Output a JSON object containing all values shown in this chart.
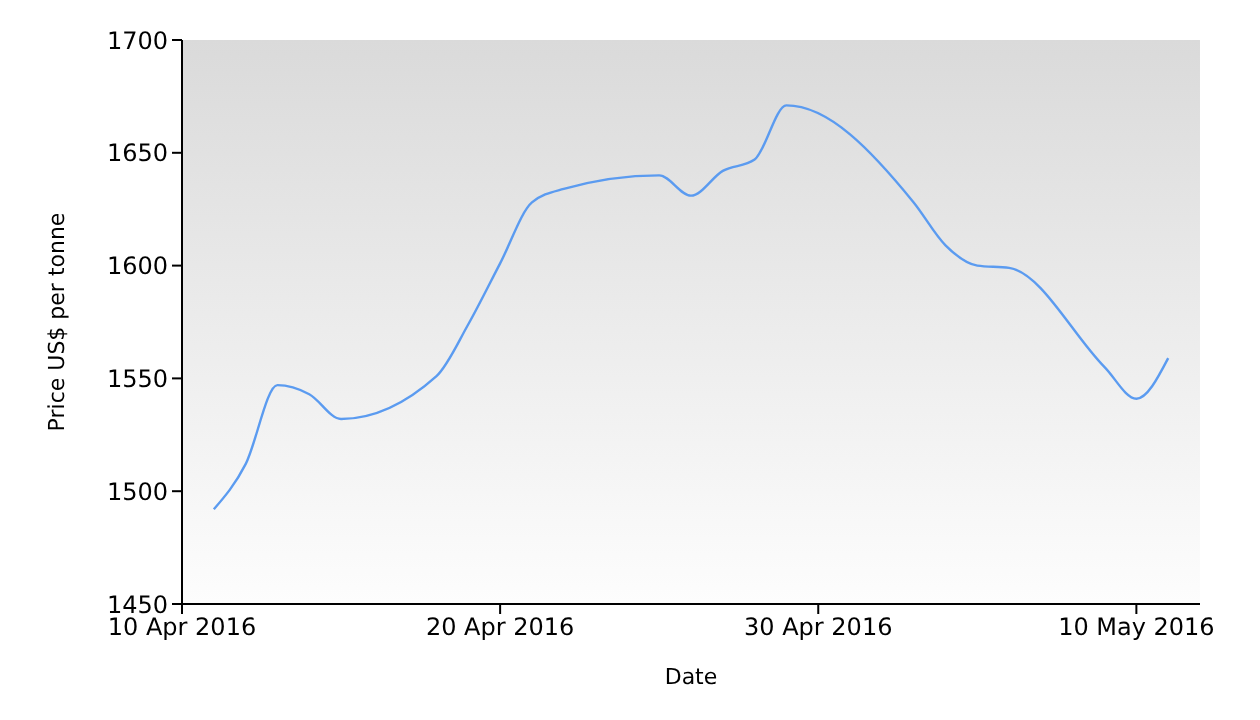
{
  "chart_data": {
    "type": "line",
    "xlabel": "Date",
    "ylabel": "Price US$ per tonne",
    "x": [
      "2016-04-11",
      "2016-04-12",
      "2016-04-13",
      "2016-04-14",
      "2016-04-15",
      "2016-04-18",
      "2016-04-19",
      "2016-04-20",
      "2016-04-21",
      "2016-04-22",
      "2016-04-25",
      "2016-04-26",
      "2016-04-27",
      "2016-04-28",
      "2016-04-29",
      "2016-05-03",
      "2016-05-04",
      "2016-05-05",
      "2016-05-06",
      "2016-05-09",
      "2016-05-10",
      "2016-05-11"
    ],
    "series": [
      {
        "color": "#5b9bf0",
        "values": [
          1492,
          1512,
          1547,
          1543,
          1532,
          1551,
          1574,
          1601,
          1628,
          1634,
          1640,
          1631,
          1642,
          1647,
          1671,
          1628,
          1609,
          1600,
          1599,
          1555,
          1541,
          1559
        ]
      }
    ],
    "xlim": [
      "2016-04-10",
      "2016-05-12"
    ],
    "xticks": [
      {
        "value": "2016-04-10",
        "label": "10 Apr 2016"
      },
      {
        "value": "2016-04-20",
        "label": "20 Apr 2016"
      },
      {
        "value": "2016-04-30",
        "label": "30 Apr 2016"
      },
      {
        "value": "2016-05-10",
        "label": "10 May 2016"
      }
    ],
    "ylim": [
      1450,
      1700
    ],
    "yticks": [
      1450,
      1500,
      1550,
      1600,
      1650,
      1700
    ],
    "grid": false,
    "legend": false,
    "marker": "none",
    "line_style": "solid"
  }
}
